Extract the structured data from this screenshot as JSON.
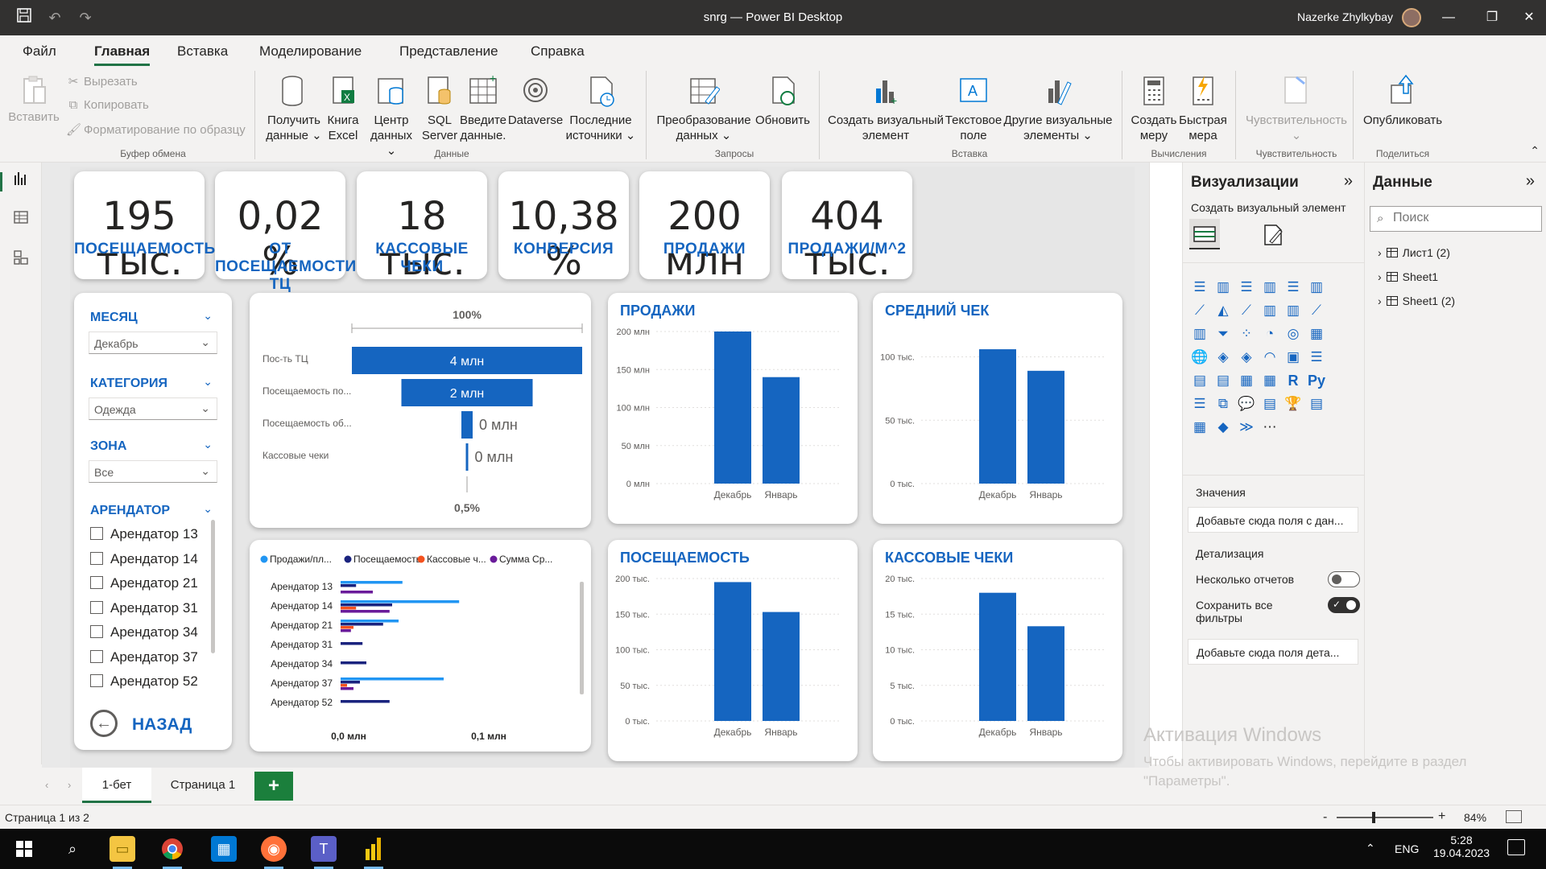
{
  "window": {
    "title": "snrg — Power BI Desktop",
    "user": "Nazerke Zhylkybay"
  },
  "menu": {
    "tabs": [
      "Файл",
      "Главная",
      "Вставка",
      "Моделирование",
      "Представление",
      "Справка"
    ],
    "active": "Главная"
  },
  "ribbon": {
    "clipboard": {
      "paste": "Вставить",
      "cut": "Вырезать",
      "copy": "Копировать",
      "format": "Форматирование по образцу",
      "group": "Буфер обмена"
    },
    "data": {
      "get_data": [
        "Получить",
        "данные"
      ],
      "excel": [
        "Книга",
        "Excel"
      ],
      "hub": [
        "Центр",
        "данных"
      ],
      "sql": [
        "SQL",
        "Server"
      ],
      "enter": [
        "Введите",
        "данные."
      ],
      "dataverse": "Dataverse",
      "recent": [
        "Последние",
        "источники"
      ],
      "group": "Данные"
    },
    "queries": {
      "transform": [
        "Преобразование",
        "данных"
      ],
      "refresh": "Обновить",
      "group": "Запросы"
    },
    "insert": {
      "new_visual": [
        "Создать визуальный",
        "элемент"
      ],
      "textbox": [
        "Текстовое",
        "поле"
      ],
      "more_visuals": [
        "Другие визуальные",
        "элементы"
      ],
      "group": "Вставка"
    },
    "calc": {
      "new_measure": [
        "Создать",
        "меру"
      ],
      "quick_measure": [
        "Быстрая",
        "мера"
      ],
      "group": "Вычисления"
    },
    "sensitivity": {
      "label": "Чувствительность",
      "group": "Чувствительность"
    },
    "share": {
      "publish": "Опубликовать",
      "group": "Поделиться"
    }
  },
  "kpis": [
    {
      "value": "195 тыс.",
      "label": "ПОСЕЩАЕМОСТЬ"
    },
    {
      "value": "0,02 %",
      "label": "ОТ ПОСЕЩАЕМОСТИ ТЦ"
    },
    {
      "value": "18 тыс.",
      "label": "КАССОВЫЕ ЧЕКИ"
    },
    {
      "value": "10,38 %",
      "label": "КОНВЕРСИЯ"
    },
    {
      "value": "200 млн",
      "label": "ПРОДАЖИ"
    },
    {
      "value": "404 тыс.",
      "label": "ПРОДАЖИ/М^2"
    }
  ],
  "slicers": {
    "month": {
      "label": "МЕСЯЦ",
      "value": "Декабрь"
    },
    "category": {
      "label": "КАТЕГОРИЯ",
      "value": "Одежда"
    },
    "zone": {
      "label": "ЗОНА",
      "value": "Все"
    },
    "tenant": {
      "label": "АРЕНДАТОР",
      "items": [
        "Арендатор 13",
        "Арендатор 14",
        "Арендатор 21",
        "Арендатор 31",
        "Арендатор 34",
        "Арендатор 37",
        "Арендатор 52"
      ]
    },
    "back": "НАЗАД"
  },
  "funnel": {
    "top_label": "100%",
    "bottom_label": "0,5%",
    "rows": [
      {
        "name": "Пос-ть ТЦ",
        "label": "4 млн",
        "pct": 1.0
      },
      {
        "name": "Посещаемость по...",
        "label": "2 млн",
        "pct": 0.57
      },
      {
        "name": "Посещаемость об...",
        "label": "0 млн",
        "pct": 0.05
      },
      {
        "name": "Кассовые чеки",
        "label": "0 млн",
        "pct": 0.005
      }
    ]
  },
  "tenant_bar": {
    "legend": [
      "Продажи/пл...",
      "Посещаемость",
      "Кассовые ч...",
      "Сумма Ср..."
    ],
    "legend_colors": [
      "#2196f3",
      "#1a237e",
      "#f4511e",
      "#6a1b9a"
    ],
    "categories": [
      "Арендатор 13",
      "Арендатор 14",
      "Арендатор 21",
      "Арендатор 31",
      "Арендатор 34",
      "Арендатор 37",
      "Арендатор 52"
    ],
    "x_ticks": [
      "0,0 млн",
      "0,1 млн"
    ],
    "series": [
      {
        "values": [
          0.048,
          0.092,
          0.045,
          0,
          0,
          0.08,
          0
        ]
      },
      {
        "values": [
          0.012,
          0.04,
          0.033,
          0.017,
          0.02,
          0.015,
          0.038
        ]
      },
      {
        "values": [
          0,
          0.012,
          0.01,
          0,
          0,
          0.005,
          0
        ]
      },
      {
        "values": [
          0.025,
          0.038,
          0.008,
          0,
          0,
          0.01,
          0
        ]
      }
    ]
  },
  "chart_data": [
    {
      "type": "bar",
      "title": "ПРОДАЖИ",
      "categories": [
        "Декабрь",
        "Январь"
      ],
      "values": [
        200,
        140
      ],
      "ylim": [
        0,
        200
      ],
      "y_ticks": [
        "0 млн",
        "50 млн",
        "100 млн",
        "150 млн",
        "200 млн"
      ],
      "grid": true
    },
    {
      "type": "bar",
      "title": "СРЕДНИЙ ЧЕК",
      "categories": [
        "Декабрь",
        "Январь"
      ],
      "values": [
        106,
        89
      ],
      "ylim": [
        0,
        120
      ],
      "y_ticks": [
        "0 тыс.",
        "50 тыс.",
        "100 тыс."
      ],
      "y_tick_values": [
        0,
        50,
        100
      ],
      "grid": true
    },
    {
      "type": "bar",
      "title": "ПОСЕЩАЕМОСТЬ",
      "categories": [
        "Декабрь",
        "Январь"
      ],
      "values": [
        195,
        153
      ],
      "ylim": [
        0,
        200
      ],
      "y_ticks": [
        "0 тыс.",
        "50 тыс.",
        "100 тыс.",
        "150 тыс.",
        "200 тыс."
      ],
      "grid": true
    },
    {
      "type": "bar",
      "title": "КАССОВЫЕ ЧЕКИ",
      "categories": [
        "Декабрь",
        "Январь"
      ],
      "values": [
        18,
        13.3
      ],
      "ylim": [
        0,
        20
      ],
      "y_ticks": [
        "0 тыс.",
        "5 тыс.",
        "10 тыс.",
        "15 тыс.",
        "20 тыс."
      ],
      "grid": true
    }
  ],
  "vis_panel": {
    "title": "Визуализации",
    "build": "Создать визуальный элемент",
    "values_label": "Значения",
    "values_well": "Добавьте сюда поля с дан...",
    "drill_label": "Детализация",
    "cross_report": "Несколько отчетов",
    "keep_filters": [
      "Сохранить все",
      "фильтры"
    ],
    "drill_well": "Добавьте сюда поля дета..."
  },
  "data_panel": {
    "title": "Данные",
    "search_placeholder": "Поиск",
    "tables": [
      "Лист1 (2)",
      "Sheet1",
      "Sheet1 (2)"
    ]
  },
  "pages": {
    "tabs": [
      "1-бет",
      "Страница 1"
    ],
    "active": "1-бет",
    "add": "+"
  },
  "status": {
    "page": "Страница 1 из 2",
    "zoom": "84%"
  },
  "watermark": {
    "title": "Активация Windows",
    "line1": "Чтобы активировать Windows, перейдите в раздел",
    "line2": "\"Параметры\"."
  },
  "taskbar": {
    "lang": "ENG",
    "time": "5:28",
    "date": "19.04.2023"
  },
  "colors": {
    "accent": "#217346",
    "bar": "#1565c0",
    "kpi_label": "#1565c0"
  }
}
